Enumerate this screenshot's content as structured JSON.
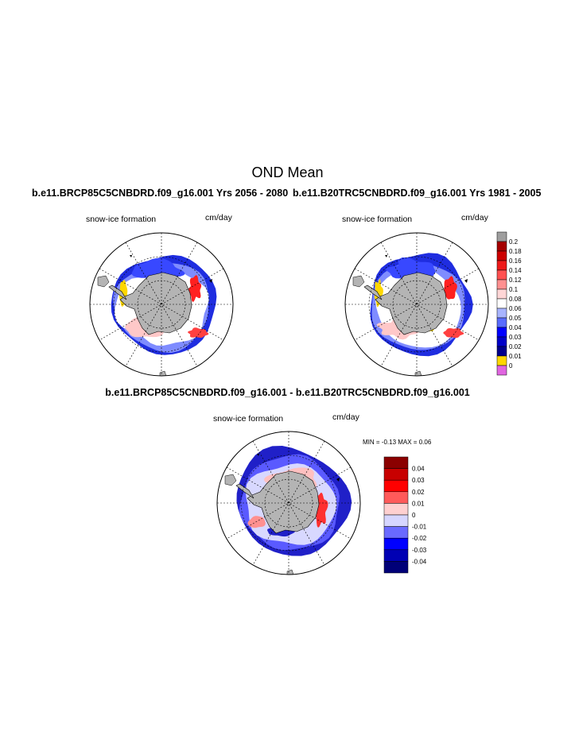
{
  "page_title": "OND Mean",
  "panels": [
    {
      "title": "b.e11.BRCP85C5CNBDRD.f09_g16.001  Yrs 2056 - 2080",
      "variable": "snow-ice formation",
      "units": "cm/day"
    },
    {
      "title": "b.e11.B20TRC5CNBDRD.f09_g16.001  Yrs 1981 - 2005",
      "variable": "snow-ice formation",
      "units": "cm/day"
    },
    {
      "title": "b.e11.BRCP85C5CNBDRD.f09_g16.001 - b.e11.B20TRC5CNBDRD.f09_g16.001",
      "variable": "snow-ice formation",
      "units": "cm/day",
      "min_max": "MIN =  -0.13 MAX =   0.06"
    }
  ],
  "chart_data": [
    {
      "type": "heatmap",
      "projection": "south polar stereographic",
      "title": "b.e11.BRCP85C5CNBDRD.f09_g16.001  Yrs 2056 - 2080",
      "variable": "snow-ice formation",
      "units": "cm/day",
      "colorbar": "shared with panel 2"
    },
    {
      "type": "heatmap",
      "projection": "south polar stereographic",
      "title": "b.e11.B20TRC5CNBDRD.f09_g16.001  Yrs 1981 - 2005",
      "variable": "snow-ice formation",
      "units": "cm/day",
      "colorbar": {
        "levels": [
          "0.2",
          "0.18",
          "0.16",
          "0.14",
          "0.12",
          "0.1",
          "0.08",
          "0.06",
          "0.05",
          "0.04",
          "0.03",
          "0.02",
          "0.01",
          "0"
        ],
        "colors": [
          "#9e9e9e",
          "#a50000",
          "#cc0000",
          "#ee1a1a",
          "#ff5050",
          "#ff9090",
          "#ffd6d6",
          "#ffffff",
          "#a8b4ff",
          "#5a6cff",
          "#0000ff",
          "#0000c8",
          "#00008c",
          "#ffd700",
          "#e066e0"
        ]
      }
    },
    {
      "type": "heatmap",
      "projection": "south polar stereographic",
      "title": "b.e11.BRCP85C5CNBDRD.f09_g16.001 - b.e11.B20TRC5CNBDRD.f09_g16.001",
      "variable": "snow-ice formation",
      "units": "cm/day",
      "min": -0.13,
      "max": 0.06,
      "colorbar": {
        "levels": [
          "0.04",
          "0.03",
          "0.02",
          "0.01",
          "0",
          "-0.01",
          "-0.02",
          "-0.03",
          "-0.04"
        ],
        "colors": [
          "#8b0000",
          "#c80000",
          "#ff0000",
          "#ff5a5a",
          "#ffd0d0",
          "#d6d6ff",
          "#6a6aff",
          "#0000ff",
          "#0000b4",
          "#000078"
        ]
      }
    }
  ]
}
